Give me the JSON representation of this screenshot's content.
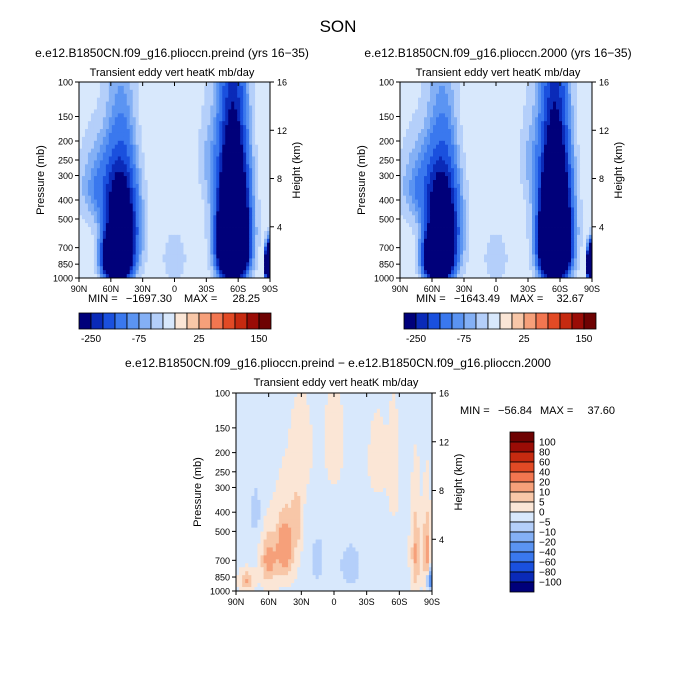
{
  "figure": {
    "season_title": "SON"
  },
  "legend_top": {
    "colors": [
      "#00007a",
      "#0a2ab8",
      "#1a50de",
      "#3a78ee",
      "#5b94f2",
      "#84b0f5",
      "#b4cffa",
      "#d8e8fc",
      "#fbe6d6",
      "#f8c7a8",
      "#f6a07a",
      "#f27650",
      "#e24a25",
      "#c62a10",
      "#9a0c06",
      "#6e0202"
    ],
    "labels": [
      "-250",
      "-75",
      "25",
      "150"
    ]
  },
  "legend_diff": {
    "colors": [
      "#00007a",
      "#0a2ab8",
      "#1a50de",
      "#3a78ee",
      "#5b94f2",
      "#84b0f5",
      "#b4cffa",
      "#d8e8fc",
      "#fbe6d6",
      "#f8c7a8",
      "#f6a07a",
      "#f27650",
      "#e24a25",
      "#c62a10",
      "#9a0c06",
      "#6e0202"
    ],
    "labels": [
      "100",
      "80",
      "60",
      "40",
      "20",
      "10",
      "5",
      "0",
      "−5",
      "−10",
      "−20",
      "−40",
      "−60",
      "−80",
      "−100"
    ]
  },
  "chart_data": [
    {
      "type": "heatmap",
      "title": "e.e12.B1850CN.f09_g16.plioccn.preind (yrs 16−35)",
      "subtitle": "Transient eddy vert heatK mb/day",
      "xlabel": "",
      "ylabel": "Pressure (mb)",
      "y2label": "Height (km)",
      "x_ticks": [
        "90N",
        "60N",
        "30N",
        "0",
        "30S",
        "60S",
        "90S"
      ],
      "x_values": [
        90,
        60,
        30,
        0,
        -30,
        -60,
        -90
      ],
      "y_ticks": [
        "100",
        "150",
        "200",
        "250",
        "300",
        "400",
        "500",
        "700",
        "850",
        "1000"
      ],
      "y_values": [
        100,
        150,
        200,
        250,
        300,
        400,
        500,
        700,
        850,
        1000
      ],
      "y2_ticks": [
        "16",
        "12",
        "8",
        "4"
      ],
      "y2_values": [
        16,
        12,
        8,
        4
      ],
      "ylim": [
        1000,
        100
      ],
      "y_scale": "log",
      "stats": {
        "min_label": "MIN =",
        "min": "−1697.30",
        "max_label": "MAX =",
        "max": "28.25"
      },
      "field": {
        "background_value": -10,
        "blobs": [
          {
            "lat": 38,
            "p": 150,
            "v": 8,
            "dlat": 32,
            "dp": 130
          },
          {
            "lat": -75,
            "p": 140,
            "v": 8,
            "dlat": 14,
            "dp": 90
          },
          {
            "lat": 50,
            "p": 560,
            "v": -420,
            "dlat": 14,
            "dp": 340
          },
          {
            "lat": 55,
            "p": 800,
            "v": -900,
            "dlat": 10,
            "dp": 190
          },
          {
            "lat": -55,
            "p": 520,
            "v": -700,
            "dlat": 13,
            "dp": 380
          },
          {
            "lat": -55,
            "p": 720,
            "v": -1000,
            "dlat": 10,
            "dp": 220
          },
          {
            "lat": 70,
            "p": 340,
            "v": -90,
            "dlat": 18,
            "dp": 150
          },
          {
            "lat": -32,
            "p": 250,
            "v": -40,
            "dlat": 10,
            "dp": 130
          },
          {
            "lat": 0,
            "p": 800,
            "v": -30,
            "dlat": 12,
            "dp": 250
          },
          {
            "lat": -88,
            "p": 850,
            "v": -1400,
            "dlat": 2,
            "dp": 140
          }
        ]
      }
    },
    {
      "type": "heatmap",
      "title": "e.e12.B1850CN.f09_g16.plioccn.2000 (yrs 16−35)",
      "subtitle": "Transient eddy vert heatK mb/day",
      "xlabel": "",
      "ylabel": "Pressure (mb)",
      "y2label": "Height (km)",
      "x_ticks": [
        "90N",
        "60N",
        "30N",
        "0",
        "30S",
        "60S",
        "90S"
      ],
      "x_values": [
        90,
        60,
        30,
        0,
        -30,
        -60,
        -90
      ],
      "y_ticks": [
        "100",
        "150",
        "200",
        "250",
        "300",
        "400",
        "500",
        "700",
        "850",
        "1000"
      ],
      "y_values": [
        100,
        150,
        200,
        250,
        300,
        400,
        500,
        700,
        850,
        1000
      ],
      "y2_ticks": [
        "16",
        "12",
        "8",
        "4"
      ],
      "y2_values": [
        16,
        12,
        8,
        4
      ],
      "ylim": [
        1000,
        100
      ],
      "y_scale": "log",
      "stats": {
        "min_label": "MIN =",
        "min": "−1643.49",
        "max_label": "MAX =",
        "max": "32.67"
      },
      "field": {
        "background_value": -10,
        "blobs": [
          {
            "lat": 38,
            "p": 150,
            "v": 8,
            "dlat": 32,
            "dp": 130
          },
          {
            "lat": -75,
            "p": 140,
            "v": 8,
            "dlat": 14,
            "dp": 90
          },
          {
            "lat": 50,
            "p": 560,
            "v": -420,
            "dlat": 14,
            "dp": 340
          },
          {
            "lat": 55,
            "p": 800,
            "v": -900,
            "dlat": 10,
            "dp": 190
          },
          {
            "lat": -55,
            "p": 520,
            "v": -700,
            "dlat": 13,
            "dp": 380
          },
          {
            "lat": -55,
            "p": 720,
            "v": -1000,
            "dlat": 10,
            "dp": 220
          },
          {
            "lat": 70,
            "p": 340,
            "v": -90,
            "dlat": 18,
            "dp": 150
          },
          {
            "lat": -32,
            "p": 250,
            "v": -40,
            "dlat": 10,
            "dp": 130
          },
          {
            "lat": 0,
            "p": 800,
            "v": -30,
            "dlat": 12,
            "dp": 250
          },
          {
            "lat": -88,
            "p": 850,
            "v": -1300,
            "dlat": 2,
            "dp": 140
          }
        ]
      }
    },
    {
      "type": "heatmap",
      "title": "e.e12.B1850CN.f09_g16.plioccn.preind − e.e12.B1850CN.f09_g16.plioccn.2000",
      "subtitle": "Transient eddy vert heatK mb/day",
      "xlabel": "",
      "ylabel": "Pressure (mb)",
      "y2label": "Height (km)",
      "x_ticks": [
        "90N",
        "60N",
        "30N",
        "0",
        "30S",
        "60S",
        "90S"
      ],
      "x_values": [
        90,
        60,
        30,
        0,
        -30,
        -60,
        -90
      ],
      "y_ticks": [
        "100",
        "150",
        "200",
        "250",
        "300",
        "400",
        "500",
        "700",
        "850",
        "1000"
      ],
      "y_values": [
        100,
        150,
        200,
        250,
        300,
        400,
        500,
        700,
        850,
        1000
      ],
      "y2_ticks": [
        "16",
        "12",
        "8",
        "4"
      ],
      "y2_values": [
        16,
        12,
        8,
        4
      ],
      "ylim": [
        1000,
        100
      ],
      "y_scale": "log",
      "stats": {
        "min_label": "MIN =",
        "min": "−56.84",
        "max_label": "MAX =",
        "max": "37.60"
      },
      "field": {
        "background_value": -1,
        "blobs": [
          {
            "lat": 45,
            "p": 600,
            "v": 18,
            "dlat": 8,
            "dp": 220
          },
          {
            "lat": 60,
            "p": 700,
            "v": 14,
            "dlat": 7,
            "dp": 200
          },
          {
            "lat": 34,
            "p": 430,
            "v": 9,
            "dlat": 5,
            "dp": 150
          },
          {
            "lat": 80,
            "p": 880,
            "v": 12,
            "dlat": 6,
            "dp": 90
          },
          {
            "lat": 30,
            "p": 200,
            "v": 3,
            "dlat": 10,
            "dp": 100
          },
          {
            "lat": 0,
            "p": 180,
            "v": 3,
            "dlat": 8,
            "dp": 110
          },
          {
            "lat": -40,
            "p": 220,
            "v": 2,
            "dlat": 10,
            "dp": 120
          },
          {
            "lat": -55,
            "p": 260,
            "v": 3,
            "dlat": 5,
            "dp": 150
          },
          {
            "lat": -75,
            "p": 650,
            "v": 12,
            "dlat": 4,
            "dp": 300
          },
          {
            "lat": -85,
            "p": 620,
            "v": 14,
            "dlat": 3,
            "dp": 250
          },
          {
            "lat": -15,
            "p": 750,
            "v": -8,
            "dlat": 10,
            "dp": 200
          },
          {
            "lat": 15,
            "p": 700,
            "v": -6,
            "dlat": 8,
            "dp": 250
          },
          {
            "lat": -88,
            "p": 880,
            "v": -40,
            "dlat": 2,
            "dp": 80
          },
          {
            "lat": 72,
            "p": 400,
            "v": -6,
            "dlat": 6,
            "dp": 150
          }
        ]
      }
    }
  ]
}
